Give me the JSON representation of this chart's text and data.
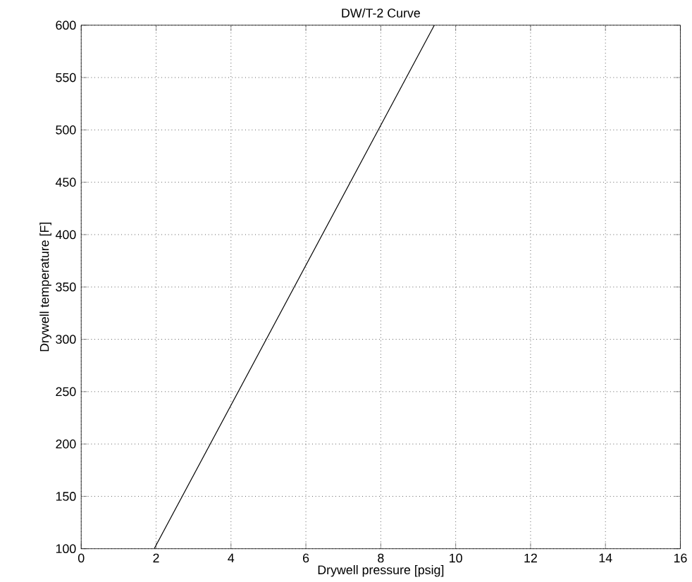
{
  "chart_data": {
    "type": "line",
    "title": "DW/T-2 Curve",
    "xlabel": "Drywell pressure [psig]",
    "ylabel": "Drywell temperature [F]",
    "x": [
      1.95,
      9.43
    ],
    "series": [
      {
        "color": "#000000",
        "values": [
          100,
          600
        ]
      }
    ],
    "xlim": [
      0,
      16
    ],
    "ylim": [
      100,
      600
    ],
    "xticks": [
      0,
      2,
      4,
      6,
      8,
      10,
      12,
      14,
      16
    ],
    "yticks": [
      100,
      150,
      200,
      250,
      300,
      350,
      400,
      450,
      500,
      550,
      600
    ],
    "grid": true,
    "marker": "none",
    "line_style": "solid"
  }
}
